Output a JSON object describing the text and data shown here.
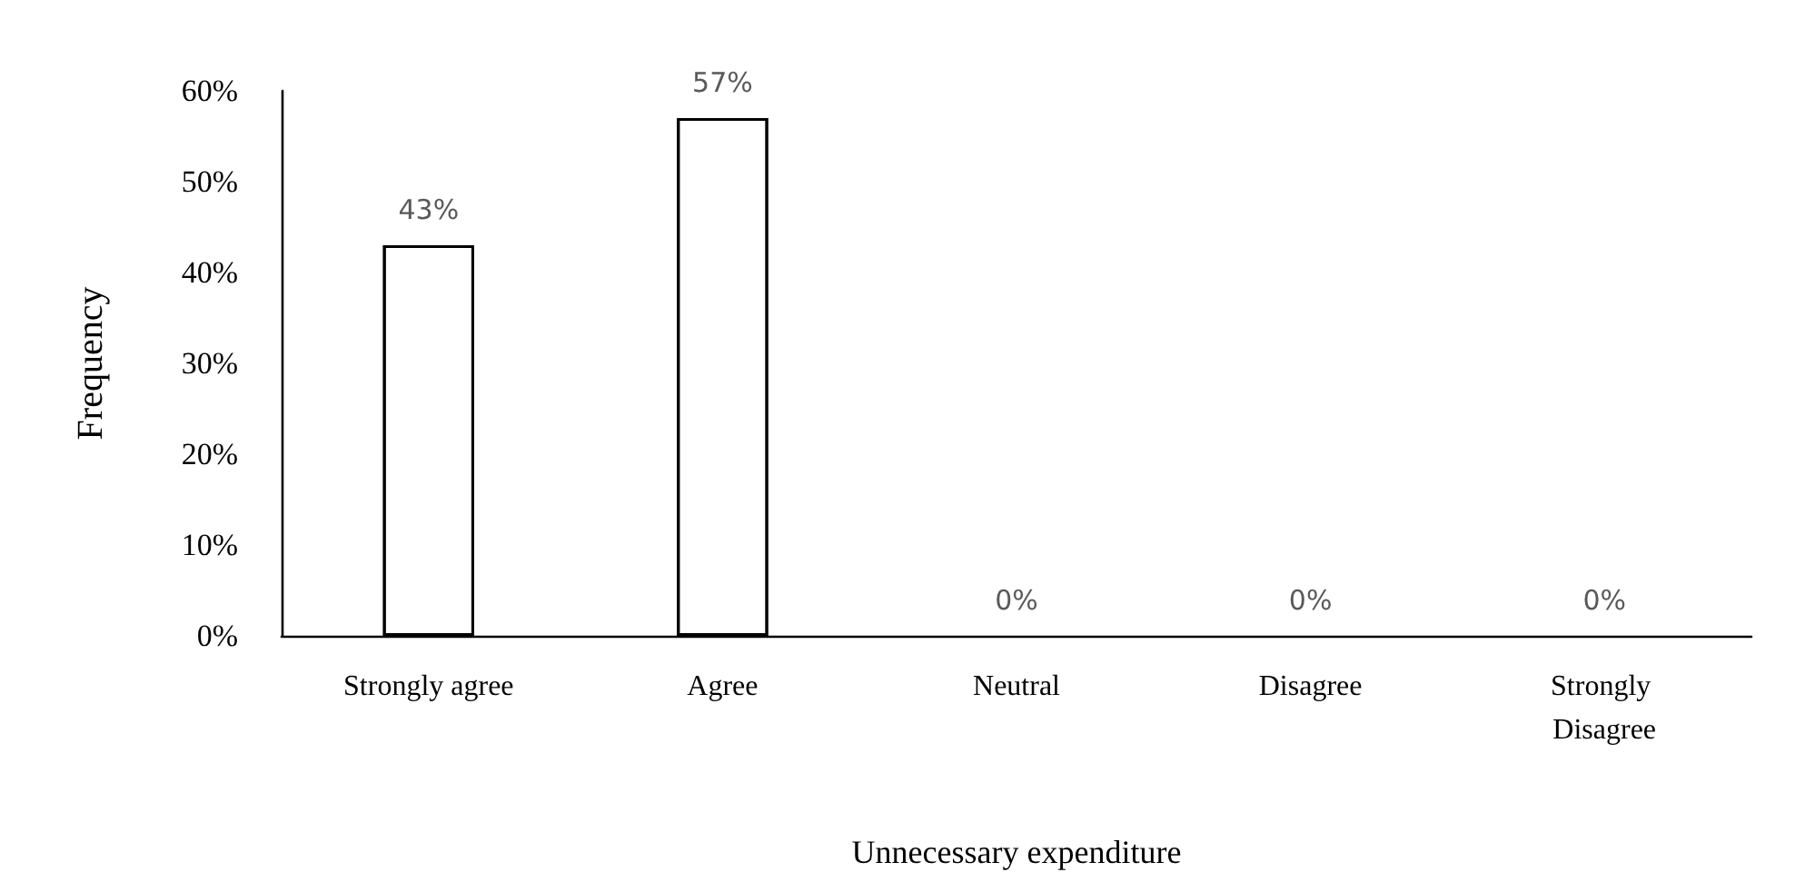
{
  "chart_data": {
    "type": "bar",
    "xlabel": "Unnecessary expenditure",
    "ylabel": "Frequency",
    "categories": [
      "Strongly agree",
      "Agree",
      "Neutral",
      "Disagree",
      "Strongly Disagree"
    ],
    "values": [
      43,
      57,
      0,
      0,
      0
    ],
    "color": "#ffffff",
    "value_labels": [
      "43%",
      "57%",
      "0%",
      "0%",
      "0%"
    ],
    "ylim": [
      0,
      60
    ],
    "yticks": [
      {
        "value": 0,
        "label": "0%"
      },
      {
        "value": 10,
        "label": "10%"
      },
      {
        "value": 20,
        "label": "20%"
      },
      {
        "value": 30,
        "label": "30%"
      },
      {
        "value": 40,
        "label": "40%"
      },
      {
        "value": 50,
        "label": "50%"
      },
      {
        "value": 60,
        "label": "60%"
      }
    ]
  }
}
